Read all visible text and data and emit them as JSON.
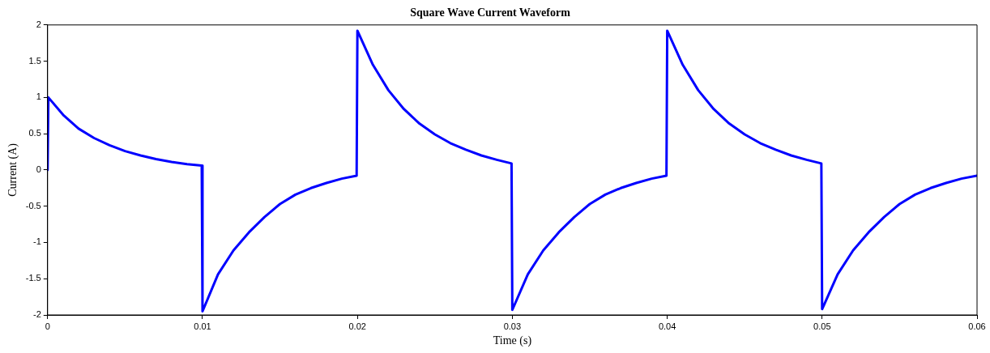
{
  "chart_data": {
    "type": "line",
    "title": "Square Wave Current Waveform",
    "xlabel": "Time (s)",
    "ylabel": "Current (A)",
    "xlim": [
      0,
      0.06
    ],
    "xticks": [
      0,
      0.01,
      0.02,
      0.03,
      0.04,
      0.05,
      0.06
    ],
    "ylim": [
      -2,
      2
    ],
    "yticks": [
      -2,
      -1.5,
      -1,
      -0.5,
      0,
      0.5,
      1,
      1.5,
      2
    ],
    "marker": "none",
    "line_style": "solid",
    "legend": false,
    "series": [
      {
        "color": "#0000ff",
        "x": [
          0,
          5e-05,
          0.001,
          0.002,
          0.003,
          0.004,
          0.005,
          0.006,
          0.007,
          0.008,
          0.009,
          0.00995,
          0.01,
          0.011,
          0.012,
          0.013,
          0.014,
          0.015,
          0.016,
          0.017,
          0.018,
          0.019,
          0.01995,
          0.02,
          0.021,
          0.022,
          0.023,
          0.024,
          0.025,
          0.026,
          0.027,
          0.028,
          0.029,
          0.02995,
          0.03,
          0.031,
          0.032,
          0.033,
          0.034,
          0.035,
          0.036,
          0.037,
          0.038,
          0.039,
          0.03995,
          0.04,
          0.041,
          0.042,
          0.043,
          0.044,
          0.045,
          0.046,
          0.047,
          0.048,
          0.049,
          0.04995,
          0.05,
          0.051,
          0.052,
          0.053,
          0.054,
          0.055,
          0.056,
          0.057,
          0.058,
          0.059,
          0.06
        ],
        "values": [
          0,
          1,
          0.76,
          0.57,
          0.44,
          0.34,
          0.26,
          0.2,
          0.15,
          0.11,
          0.08,
          0.06,
          -1.95,
          -1.44,
          -1.11,
          -0.86,
          -0.65,
          -0.47,
          -0.34,
          -0.25,
          -0.18,
          -0.12,
          -0.08,
          1.92,
          1.45,
          1.1,
          0.84,
          0.64,
          0.49,
          0.37,
          0.28,
          0.2,
          0.14,
          0.09,
          -1.93,
          -1.44,
          -1.11,
          -0.86,
          -0.65,
          -0.47,
          -0.34,
          -0.25,
          -0.18,
          -0.12,
          -0.08,
          1.92,
          1.45,
          1.1,
          0.84,
          0.64,
          0.49,
          0.37,
          0.28,
          0.2,
          0.14,
          0.09,
          -1.92,
          -1.44,
          -1.11,
          -0.86,
          -0.65,
          -0.47,
          -0.34,
          -0.25,
          -0.18,
          -0.12,
          -0.08
        ]
      }
    ]
  }
}
